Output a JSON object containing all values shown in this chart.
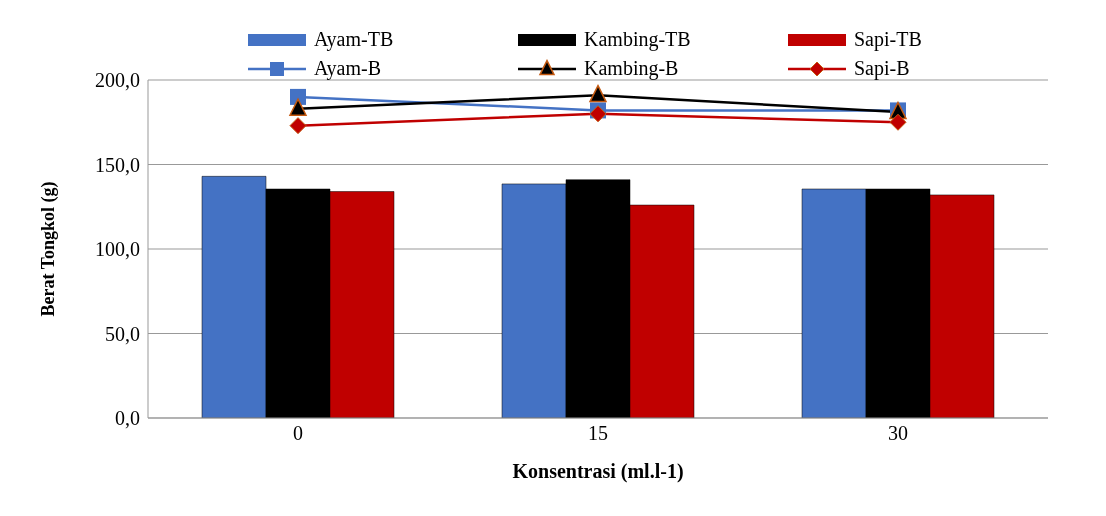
{
  "chart_data": {
    "type": "bar",
    "xlabel": "Konsentrasi (ml.l-1)",
    "ylabel": "Berat Tongkol (g)",
    "categories": [
      "0",
      "15",
      "30"
    ],
    "series": [
      {
        "name": "Ayam-TB",
        "color": "#4472c4",
        "values": [
          143,
          138.5,
          135.5
        ]
      },
      {
        "name": "Kambing-TB",
        "color": "#000000",
        "values": [
          135.5,
          141,
          135.5
        ]
      },
      {
        "name": "Sapi-TB",
        "color": "#c00000",
        "values": [
          134,
          126,
          132
        ]
      },
      {
        "name": "Ayam-B",
        "type": "line",
        "color": "#4472c4",
        "marker": "square",
        "values": [
          190,
          182,
          182
        ]
      },
      {
        "name": "Kambing-B",
        "type": "line",
        "color": "#000000",
        "marker": "triangle",
        "values": [
          183,
          191,
          181
        ]
      },
      {
        "name": "Sapi-B",
        "type": "line",
        "color": "#c00000",
        "marker": "diamond",
        "values": [
          173,
          180,
          175
        ]
      }
    ],
    "ylim": [
      0,
      200
    ],
    "yticks": [
      {
        "value": 0,
        "label": "0,0"
      },
      {
        "value": 50,
        "label": "50,0"
      },
      {
        "value": 100,
        "label": "100,0"
      },
      {
        "value": 150,
        "label": "150,0"
      },
      {
        "value": 200,
        "label": "200,0"
      }
    ],
    "grid": "y",
    "legend": "top"
  }
}
